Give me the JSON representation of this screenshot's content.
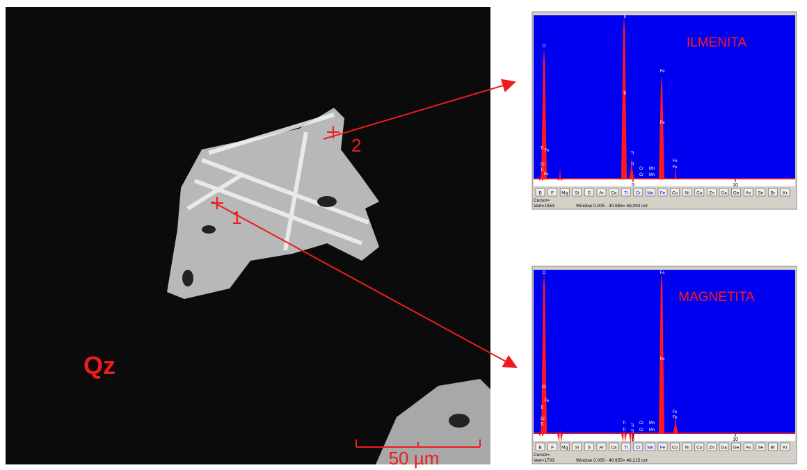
{
  "image": {
    "phase_label": "Qz",
    "point_labels": [
      "1",
      "2"
    ],
    "scale_bar": "50 µm"
  },
  "element_buttons": [
    "B",
    "F",
    "Mg",
    "Si",
    "S",
    "Ar",
    "Ca",
    "Ti",
    "Cr",
    "Mn",
    "Fe",
    "Co",
    "Ni",
    "Cu",
    "Zn",
    "Ga",
    "Ge",
    "As",
    "Se",
    "Br",
    "Kr"
  ],
  "spectra": [
    {
      "mineral": "ILMENITA",
      "peak_labels": [
        "O",
        "Ti",
        "Ti",
        "Fe",
        "Fe",
        "Ti",
        "Ti",
        "Cr",
        "Mn",
        "Cr",
        "Mn",
        "Fe",
        "Fe",
        "Ti",
        "Fe",
        "Cr",
        "Ti",
        "Fe"
      ],
      "axis_ticks": [
        "5",
        "10"
      ],
      "cursor": "Cursor=",
      "vert": "Vert=1553",
      "window": "Window 0.005 - 40.955=  59,093 cnt"
    },
    {
      "mineral": "MAGNETITA",
      "peak_labels": [
        "O",
        "Fe",
        "Fe",
        "Cr",
        "Fe",
        "Ti",
        "Cr",
        "Ti",
        "Ti",
        "Ti",
        "Cr",
        "Mn",
        "Ti",
        "Ti",
        "Cr",
        "Mn",
        "Fe",
        "Fe"
      ],
      "axis_ticks": [
        "5",
        "10"
      ],
      "cursor": "Cursor=",
      "vert": "Vert=1703",
      "window": "Window 0.005 - 40.955=  46,215 cnt"
    }
  ]
}
